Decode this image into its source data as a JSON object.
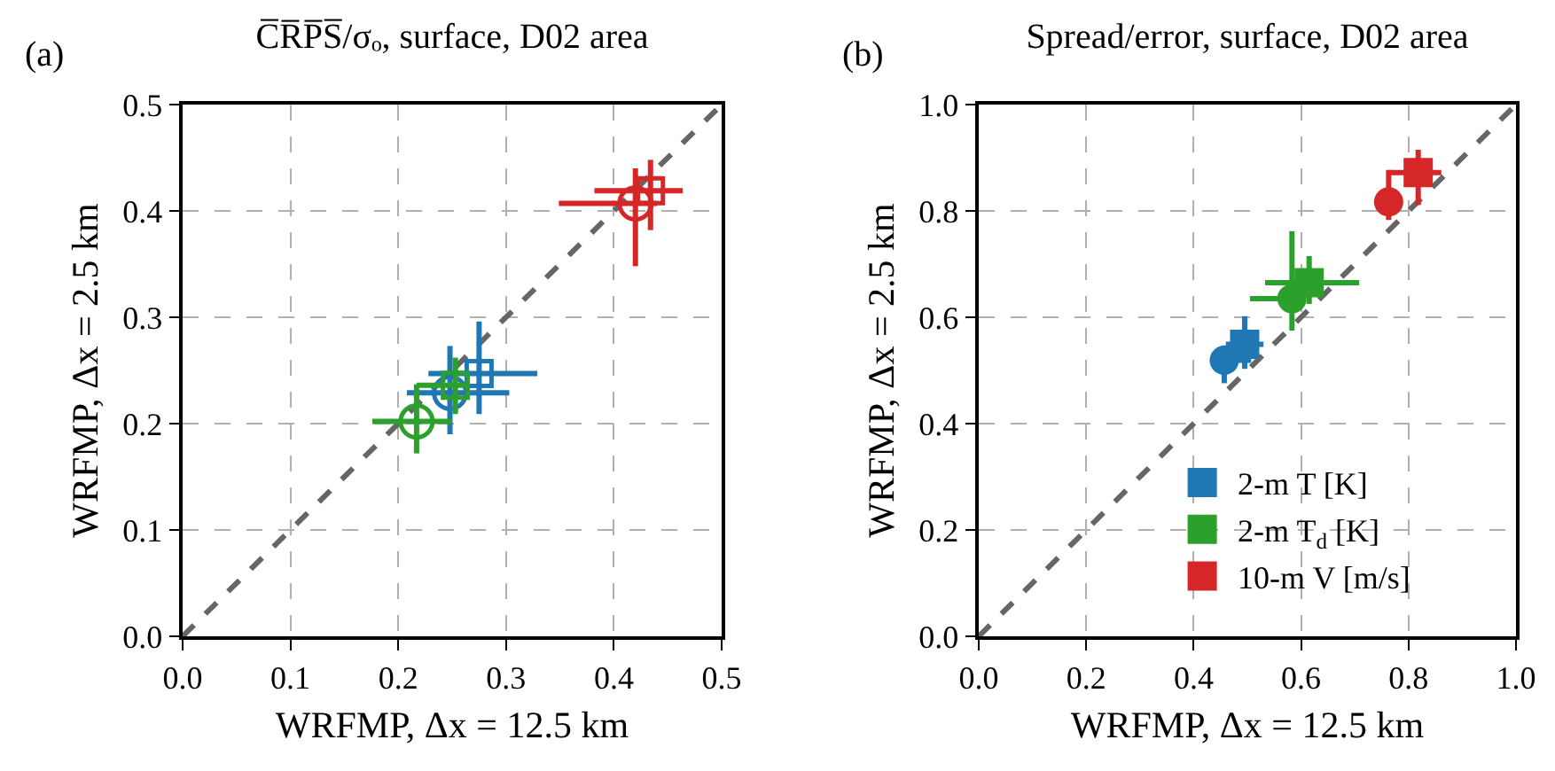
{
  "chart_data": [
    {
      "type": "scatter",
      "title": "C̅R̅P̅S̅/σₒ, surface, D02 area",
      "annotations": [
        "(a)"
      ],
      "xlabel": "WRFMP, Δx = 12.5 km",
      "ylabel": "WRFMP, Δx = 2.5 km",
      "xlim": [
        0,
        0.5
      ],
      "ylim": [
        0,
        0.5
      ],
      "xticks": [
        {
          "value": 0,
          "label": "0.0"
        },
        {
          "value": 0.1,
          "label": "0.1"
        },
        {
          "value": 0.2,
          "label": "0.2"
        },
        {
          "value": 0.3,
          "label": "0.3"
        },
        {
          "value": 0.4,
          "label": "0.4"
        },
        {
          "value": 0.5,
          "label": "0.5"
        }
      ],
      "yticks": [
        {
          "value": 0,
          "label": "0.0"
        },
        {
          "value": 0.1,
          "label": "0.1"
        },
        {
          "value": 0.2,
          "label": "0.2"
        },
        {
          "value": 0.3,
          "label": "0.3"
        },
        {
          "value": 0.4,
          "label": "0.4"
        },
        {
          "value": 0.5,
          "label": "0.5"
        }
      ],
      "grid": true,
      "legend": false,
      "series": [
        {
          "type": "line",
          "color": "#666666",
          "line_style": "dashed",
          "marker": "none",
          "x": [
            0,
            0.5
          ],
          "values": [
            0,
            0.5
          ]
        },
        {
          "color": "#1f77b4",
          "marker": "circle",
          "x": [
            0.248
          ],
          "values": [
            0.229
          ],
          "xerrors": [
            [
              0.208,
              0.303
            ]
          ],
          "errors": [
            [
              0.19,
              0.273
            ]
          ]
        },
        {
          "color": "#1f77b4",
          "marker": "square",
          "x": [
            0.275
          ],
          "values": [
            0.247
          ],
          "xerrors": [
            [
              0.228,
              0.329
            ]
          ],
          "errors": [
            [
              0.209,
              0.296
            ]
          ]
        },
        {
          "color": "#2ca02c",
          "marker": "circle",
          "x": [
            0.217
          ],
          "values": [
            0.202
          ],
          "xerrors": [
            [
              0.176,
              0.25
            ]
          ],
          "errors": [
            [
              0.172,
              0.237
            ]
          ]
        },
        {
          "color": "#2ca02c",
          "marker": "square",
          "x": [
            0.253
          ],
          "values": [
            0.236
          ],
          "xerrors": [
            [
              0.217,
              0.266
            ]
          ],
          "errors": [
            [
              0.209,
              0.262
            ]
          ]
        },
        {
          "color": "#d62728",
          "marker": "circle",
          "x": [
            0.42
          ],
          "values": [
            0.407
          ],
          "xerrors": [
            [
              0.349,
              0.44
            ]
          ],
          "errors": [
            [
              0.348,
              0.44
            ]
          ]
        },
        {
          "color": "#d62728",
          "marker": "square",
          "x": [
            0.434
          ],
          "values": [
            0.419
          ],
          "xerrors": [
            [
              0.382,
              0.464
            ]
          ],
          "errors": [
            [
              0.382,
              0.448
            ]
          ]
        }
      ]
    },
    {
      "type": "scatter",
      "title": "Spread/error, surface, D02 area",
      "annotations": [
        "(b)"
      ],
      "xlabel": "WRFMP, Δx = 12.5 km",
      "ylabel": "WRFMP, Δx = 2.5 km",
      "xlim": [
        0,
        1
      ],
      "ylim": [
        0,
        1
      ],
      "xticks": [
        {
          "value": 0,
          "label": "0.0"
        },
        {
          "value": 0.2,
          "label": "0.2"
        },
        {
          "value": 0.4,
          "label": "0.4"
        },
        {
          "value": 0.6,
          "label": "0.6"
        },
        {
          "value": 0.8,
          "label": "0.8"
        },
        {
          "value": 1,
          "label": "1.0"
        }
      ],
      "yticks": [
        {
          "value": 0,
          "label": "0.0"
        },
        {
          "value": 0.2,
          "label": "0.2"
        },
        {
          "value": 0.4,
          "label": "0.4"
        },
        {
          "value": 0.6,
          "label": "0.6"
        },
        {
          "value": 0.8,
          "label": "0.8"
        },
        {
          "value": 1,
          "label": "1.0"
        }
      ],
      "grid": true,
      "legend": "bottom right",
      "series": [
        {
          "type": "line",
          "color": "#666666",
          "line_style": "dashed",
          "marker": "none",
          "x": [
            0,
            1
          ],
          "values": [
            0,
            1
          ]
        },
        {
          "color": "#1f77b4",
          "marker": "circle",
          "x": [
            0.457
          ],
          "values": [
            0.519
          ],
          "xerrors": [
            [
              0.433,
              0.507
            ]
          ],
          "errors": [
            [
              0.476,
              0.547
            ]
          ]
        },
        {
          "name": "2-m T [K]",
          "color": "#1f77b4",
          "marker": "square",
          "x": [
            0.495
          ],
          "values": [
            0.549
          ],
          "xerrors": [
            [
              0.46,
              0.53
            ]
          ],
          "errors": [
            [
              0.503,
              0.602
            ]
          ]
        },
        {
          "color": "#2ca02c",
          "marker": "circle",
          "x": [
            0.583
          ],
          "values": [
            0.635
          ],
          "xerrors": [
            [
              0.505,
              0.583
            ]
          ],
          "errors": [
            [
              0.575,
              0.762
            ]
          ]
        },
        {
          "name": "2-m T$_{d}$ [K]",
          "color": "#2ca02c",
          "marker": "square",
          "x": [
            0.615
          ],
          "values": [
            0.665
          ],
          "xerrors": [
            [
              0.533,
              0.708
            ]
          ],
          "errors": [
            [
              0.625,
              0.715
            ]
          ]
        },
        {
          "color": "#d62728",
          "marker": "circle",
          "x": [
            0.763
          ],
          "values": [
            0.817
          ],
          "xerrors": [
            [
              0.763,
              0.781
            ]
          ],
          "errors": [
            [
              0.783,
              0.877
            ]
          ]
        },
        {
          "name": "10-m V [m/s]",
          "color": "#d62728",
          "marker": "square",
          "x": [
            0.818
          ],
          "values": [
            0.872
          ],
          "xerrors": [
            [
              0.763,
              0.861
            ]
          ],
          "errors": [
            [
              0.811,
              0.915
            ]
          ]
        }
      ]
    }
  ]
}
